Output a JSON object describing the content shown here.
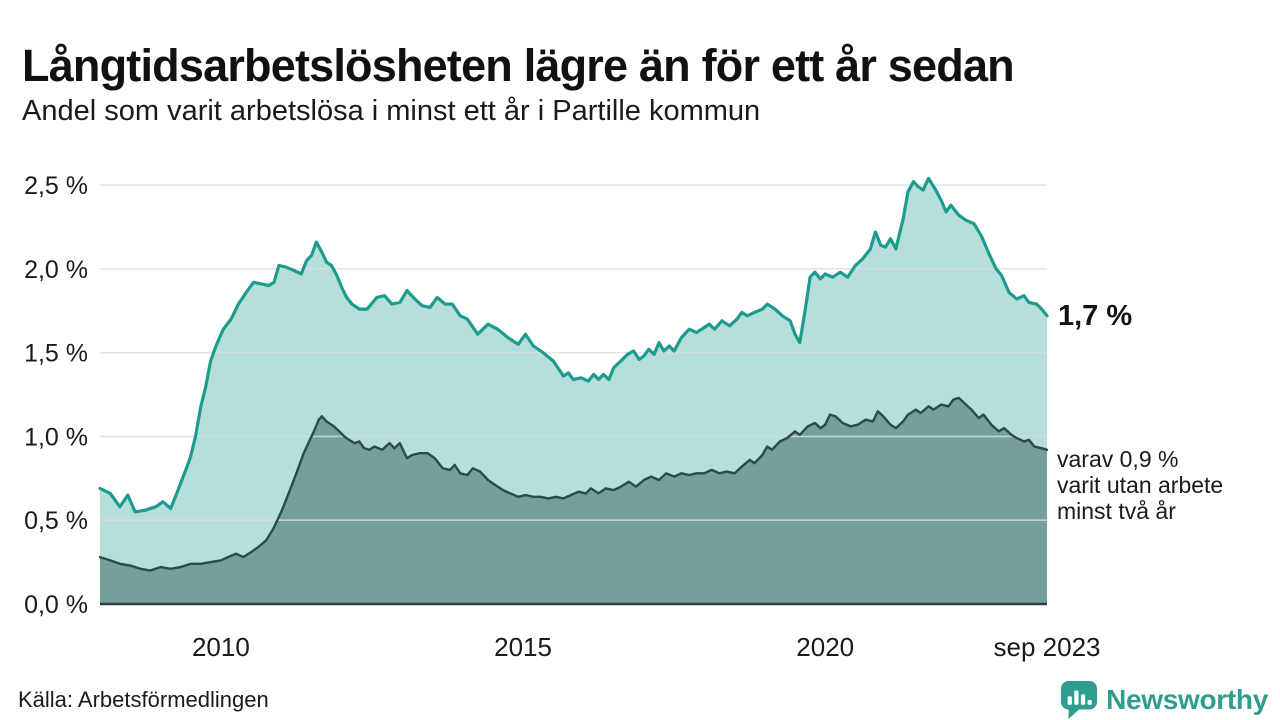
{
  "header": {
    "title": "Långtidsarbetslösheten lägre än för ett år sedan",
    "subtitle": "Andel som varit arbetslösa i minst ett år i Partille kommun"
  },
  "annotations": {
    "latest_primary": "1,7 %",
    "secondary_line1": "varav 0,9 %",
    "secondary_line2": "varit utan arbete",
    "secondary_line3": "minst två år"
  },
  "footer": {
    "source": "Källa: Arbetsförmedlingen",
    "brand": "Newsworthy"
  },
  "colors": {
    "primary_line": "#1d9c8e",
    "primary_fill": "rgba(29,156,142,0.32)",
    "secondary_line": "#2a4c45",
    "secondary_fill": "rgba(47,90,84,0.48)",
    "baseline": "#333d3b",
    "gridline": "#d9dedd",
    "text": "#1a1a1a",
    "brand_teal": "#2f9e8e"
  },
  "chart_data": {
    "type": "area",
    "title": "Långtidsarbetslösheten lägre än för ett år sedan",
    "subtitle": "Andel som varit arbetslösa i minst ett år i Partille kommun",
    "xlabel": "",
    "ylabel": "",
    "unit": "%",
    "x_range": [
      2008.0,
      2023.67
    ],
    "y_range": [
      0,
      2.59
    ],
    "grid": true,
    "legend": "inline-annotations",
    "y_ticks": [
      {
        "value": 2.5,
        "label": "2,5 %"
      },
      {
        "value": 2.0,
        "label": "2,0 %"
      },
      {
        "value": 1.5,
        "label": "1,5 %"
      },
      {
        "value": 1.0,
        "label": "1,0 %"
      },
      {
        "value": 0.5,
        "label": "0,5 %"
      },
      {
        "value": 0.0,
        "label": "0,0 %"
      }
    ],
    "x_ticks": [
      {
        "year": 2010,
        "label": "2010"
      },
      {
        "year": 2015,
        "label": "2015"
      },
      {
        "year": 2020,
        "label": "2020"
      },
      {
        "year": 2023.67,
        "label": "sep 2023"
      }
    ],
    "series": [
      {
        "name": "Arbetslösa minst ett år",
        "latest_value": 1.7,
        "points": [
          [
            2008.0,
            0.69
          ],
          [
            2008.17,
            0.66
          ],
          [
            2008.33,
            0.58
          ],
          [
            2008.46,
            0.65
          ],
          [
            2008.58,
            0.55
          ],
          [
            2008.75,
            0.56
          ],
          [
            2008.92,
            0.58
          ],
          [
            2009.04,
            0.61
          ],
          [
            2009.17,
            0.57
          ],
          [
            2009.29,
            0.68
          ],
          [
            2009.42,
            0.8
          ],
          [
            2009.5,
            0.88
          ],
          [
            2009.58,
            1.0
          ],
          [
            2009.67,
            1.18
          ],
          [
            2009.75,
            1.3
          ],
          [
            2009.83,
            1.45
          ],
          [
            2009.92,
            1.54
          ],
          [
            2010.04,
            1.64
          ],
          [
            2010.17,
            1.7
          ],
          [
            2010.29,
            1.79
          ],
          [
            2010.42,
            1.86
          ],
          [
            2010.54,
            1.92
          ],
          [
            2010.67,
            1.91
          ],
          [
            2010.79,
            1.9
          ],
          [
            2010.88,
            1.92
          ],
          [
            2010.96,
            2.02
          ],
          [
            2011.08,
            2.01
          ],
          [
            2011.21,
            1.99
          ],
          [
            2011.33,
            1.97
          ],
          [
            2011.42,
            2.05
          ],
          [
            2011.5,
            2.08
          ],
          [
            2011.58,
            2.16
          ],
          [
            2011.67,
            2.1
          ],
          [
            2011.75,
            2.04
          ],
          [
            2011.83,
            2.02
          ],
          [
            2011.92,
            1.96
          ],
          [
            2012.0,
            1.89
          ],
          [
            2012.08,
            1.83
          ],
          [
            2012.17,
            1.79
          ],
          [
            2012.29,
            1.76
          ],
          [
            2012.42,
            1.76
          ],
          [
            2012.58,
            1.83
          ],
          [
            2012.71,
            1.84
          ],
          [
            2012.83,
            1.79
          ],
          [
            2012.96,
            1.8
          ],
          [
            2013.08,
            1.87
          ],
          [
            2013.21,
            1.82
          ],
          [
            2013.33,
            1.78
          ],
          [
            2013.46,
            1.77
          ],
          [
            2013.58,
            1.83
          ],
          [
            2013.71,
            1.79
          ],
          [
            2013.83,
            1.79
          ],
          [
            2013.96,
            1.72
          ],
          [
            2014.08,
            1.7
          ],
          [
            2014.25,
            1.61
          ],
          [
            2014.42,
            1.67
          ],
          [
            2014.58,
            1.64
          ],
          [
            2014.75,
            1.59
          ],
          [
            2014.92,
            1.55
          ],
          [
            2015.04,
            1.61
          ],
          [
            2015.17,
            1.54
          ],
          [
            2015.33,
            1.5
          ],
          [
            2015.5,
            1.45
          ],
          [
            2015.67,
            1.36
          ],
          [
            2015.75,
            1.38
          ],
          [
            2015.83,
            1.34
          ],
          [
            2015.96,
            1.35
          ],
          [
            2016.08,
            1.33
          ],
          [
            2016.17,
            1.37
          ],
          [
            2016.25,
            1.34
          ],
          [
            2016.33,
            1.37
          ],
          [
            2016.42,
            1.34
          ],
          [
            2016.5,
            1.41
          ],
          [
            2016.62,
            1.45
          ],
          [
            2016.73,
            1.49
          ],
          [
            2016.83,
            1.51
          ],
          [
            2016.92,
            1.46
          ],
          [
            2017.0,
            1.48
          ],
          [
            2017.08,
            1.52
          ],
          [
            2017.17,
            1.49
          ],
          [
            2017.25,
            1.56
          ],
          [
            2017.33,
            1.51
          ],
          [
            2017.42,
            1.54
          ],
          [
            2017.5,
            1.51
          ],
          [
            2017.62,
            1.59
          ],
          [
            2017.75,
            1.64
          ],
          [
            2017.87,
            1.62
          ],
          [
            2018.0,
            1.65
          ],
          [
            2018.08,
            1.67
          ],
          [
            2018.17,
            1.64
          ],
          [
            2018.29,
            1.69
          ],
          [
            2018.42,
            1.66
          ],
          [
            2018.54,
            1.7
          ],
          [
            2018.62,
            1.74
          ],
          [
            2018.71,
            1.72
          ],
          [
            2018.83,
            1.74
          ],
          [
            2018.96,
            1.76
          ],
          [
            2019.04,
            1.79
          ],
          [
            2019.17,
            1.76
          ],
          [
            2019.29,
            1.72
          ],
          [
            2019.42,
            1.69
          ],
          [
            2019.5,
            1.61
          ],
          [
            2019.58,
            1.56
          ],
          [
            2019.67,
            1.76
          ],
          [
            2019.75,
            1.95
          ],
          [
            2019.83,
            1.98
          ],
          [
            2019.92,
            1.94
          ],
          [
            2020.0,
            1.97
          ],
          [
            2020.12,
            1.95
          ],
          [
            2020.25,
            1.98
          ],
          [
            2020.37,
            1.95
          ],
          [
            2020.5,
            2.02
          ],
          [
            2020.62,
            2.06
          ],
          [
            2020.75,
            2.12
          ],
          [
            2020.83,
            2.22
          ],
          [
            2020.92,
            2.14
          ],
          [
            2021.0,
            2.13
          ],
          [
            2021.08,
            2.18
          ],
          [
            2021.17,
            2.12
          ],
          [
            2021.29,
            2.3
          ],
          [
            2021.37,
            2.46
          ],
          [
            2021.46,
            2.52
          ],
          [
            2021.54,
            2.49
          ],
          [
            2021.62,
            2.47
          ],
          [
            2021.71,
            2.54
          ],
          [
            2021.83,
            2.47
          ],
          [
            2021.92,
            2.41
          ],
          [
            2022.0,
            2.34
          ],
          [
            2022.08,
            2.38
          ],
          [
            2022.21,
            2.32
          ],
          [
            2022.33,
            2.29
          ],
          [
            2022.46,
            2.27
          ],
          [
            2022.58,
            2.2
          ],
          [
            2022.71,
            2.09
          ],
          [
            2022.83,
            2.0
          ],
          [
            2022.92,
            1.96
          ],
          [
            2023.04,
            1.86
          ],
          [
            2023.17,
            1.82
          ],
          [
            2023.29,
            1.84
          ],
          [
            2023.37,
            1.8
          ],
          [
            2023.5,
            1.79
          ],
          [
            2023.58,
            1.76
          ],
          [
            2023.67,
            1.72
          ]
        ]
      },
      {
        "name": "varav utan arbete minst två år",
        "latest_value": 0.9,
        "points": [
          [
            2008.0,
            0.28
          ],
          [
            2008.17,
            0.26
          ],
          [
            2008.33,
            0.24
          ],
          [
            2008.5,
            0.23
          ],
          [
            2008.67,
            0.21
          ],
          [
            2008.83,
            0.2
          ],
          [
            2009.0,
            0.22
          ],
          [
            2009.17,
            0.21
          ],
          [
            2009.33,
            0.22
          ],
          [
            2009.5,
            0.24
          ],
          [
            2009.67,
            0.24
          ],
          [
            2009.83,
            0.25
          ],
          [
            2010.0,
            0.26
          ],
          [
            2010.12,
            0.28
          ],
          [
            2010.25,
            0.3
          ],
          [
            2010.37,
            0.28
          ],
          [
            2010.5,
            0.31
          ],
          [
            2010.62,
            0.34
          ],
          [
            2010.75,
            0.38
          ],
          [
            2010.87,
            0.45
          ],
          [
            2011.0,
            0.55
          ],
          [
            2011.12,
            0.66
          ],
          [
            2011.25,
            0.78
          ],
          [
            2011.37,
            0.9
          ],
          [
            2011.46,
            0.97
          ],
          [
            2011.54,
            1.03
          ],
          [
            2011.62,
            1.1
          ],
          [
            2011.67,
            1.12
          ],
          [
            2011.75,
            1.09
          ],
          [
            2011.87,
            1.06
          ],
          [
            2011.96,
            1.03
          ],
          [
            2012.04,
            1.0
          ],
          [
            2012.12,
            0.98
          ],
          [
            2012.21,
            0.96
          ],
          [
            2012.29,
            0.97
          ],
          [
            2012.37,
            0.93
          ],
          [
            2012.46,
            0.92
          ],
          [
            2012.54,
            0.94
          ],
          [
            2012.67,
            0.92
          ],
          [
            2012.79,
            0.96
          ],
          [
            2012.87,
            0.93
          ],
          [
            2012.96,
            0.96
          ],
          [
            2013.08,
            0.87
          ],
          [
            2013.17,
            0.89
          ],
          [
            2013.29,
            0.9
          ],
          [
            2013.42,
            0.9
          ],
          [
            2013.54,
            0.87
          ],
          [
            2013.67,
            0.81
          ],
          [
            2013.79,
            0.8
          ],
          [
            2013.87,
            0.83
          ],
          [
            2013.96,
            0.78
          ],
          [
            2014.08,
            0.77
          ],
          [
            2014.17,
            0.81
          ],
          [
            2014.29,
            0.79
          ],
          [
            2014.42,
            0.74
          ],
          [
            2014.54,
            0.71
          ],
          [
            2014.67,
            0.68
          ],
          [
            2014.79,
            0.66
          ],
          [
            2014.92,
            0.64
          ],
          [
            2015.04,
            0.65
          ],
          [
            2015.17,
            0.64
          ],
          [
            2015.29,
            0.64
          ],
          [
            2015.42,
            0.63
          ],
          [
            2015.54,
            0.64
          ],
          [
            2015.67,
            0.63
          ],
          [
            2015.79,
            0.65
          ],
          [
            2015.92,
            0.67
          ],
          [
            2016.04,
            0.66
          ],
          [
            2016.12,
            0.69
          ],
          [
            2016.25,
            0.66
          ],
          [
            2016.37,
            0.69
          ],
          [
            2016.5,
            0.68
          ],
          [
            2016.62,
            0.7
          ],
          [
            2016.75,
            0.73
          ],
          [
            2016.87,
            0.7
          ],
          [
            2017.0,
            0.74
          ],
          [
            2017.12,
            0.76
          ],
          [
            2017.25,
            0.74
          ],
          [
            2017.37,
            0.78
          ],
          [
            2017.5,
            0.76
          ],
          [
            2017.62,
            0.78
          ],
          [
            2017.75,
            0.77
          ],
          [
            2017.87,
            0.78
          ],
          [
            2018.0,
            0.78
          ],
          [
            2018.12,
            0.8
          ],
          [
            2018.25,
            0.78
          ],
          [
            2018.37,
            0.79
          ],
          [
            2018.5,
            0.78
          ],
          [
            2018.62,
            0.82
          ],
          [
            2018.75,
            0.86
          ],
          [
            2018.83,
            0.84
          ],
          [
            2018.96,
            0.89
          ],
          [
            2019.04,
            0.94
          ],
          [
            2019.12,
            0.92
          ],
          [
            2019.25,
            0.97
          ],
          [
            2019.37,
            0.99
          ],
          [
            2019.5,
            1.03
          ],
          [
            2019.58,
            1.01
          ],
          [
            2019.71,
            1.06
          ],
          [
            2019.83,
            1.08
          ],
          [
            2019.92,
            1.05
          ],
          [
            2020.0,
            1.07
          ],
          [
            2020.08,
            1.13
          ],
          [
            2020.17,
            1.12
          ],
          [
            2020.29,
            1.08
          ],
          [
            2020.42,
            1.06
          ],
          [
            2020.54,
            1.07
          ],
          [
            2020.67,
            1.1
          ],
          [
            2020.79,
            1.09
          ],
          [
            2020.87,
            1.15
          ],
          [
            2020.96,
            1.12
          ],
          [
            2021.08,
            1.07
          ],
          [
            2021.17,
            1.05
          ],
          [
            2021.29,
            1.09
          ],
          [
            2021.37,
            1.13
          ],
          [
            2021.5,
            1.16
          ],
          [
            2021.58,
            1.14
          ],
          [
            2021.71,
            1.18
          ],
          [
            2021.79,
            1.16
          ],
          [
            2021.92,
            1.19
          ],
          [
            2022.04,
            1.18
          ],
          [
            2022.12,
            1.22
          ],
          [
            2022.21,
            1.23
          ],
          [
            2022.33,
            1.19
          ],
          [
            2022.42,
            1.16
          ],
          [
            2022.54,
            1.11
          ],
          [
            2022.62,
            1.13
          ],
          [
            2022.75,
            1.07
          ],
          [
            2022.87,
            1.03
          ],
          [
            2022.96,
            1.05
          ],
          [
            2023.08,
            1.01
          ],
          [
            2023.17,
            0.99
          ],
          [
            2023.29,
            0.97
          ],
          [
            2023.37,
            0.98
          ],
          [
            2023.46,
            0.94
          ],
          [
            2023.58,
            0.93
          ],
          [
            2023.67,
            0.92
          ]
        ]
      }
    ]
  }
}
